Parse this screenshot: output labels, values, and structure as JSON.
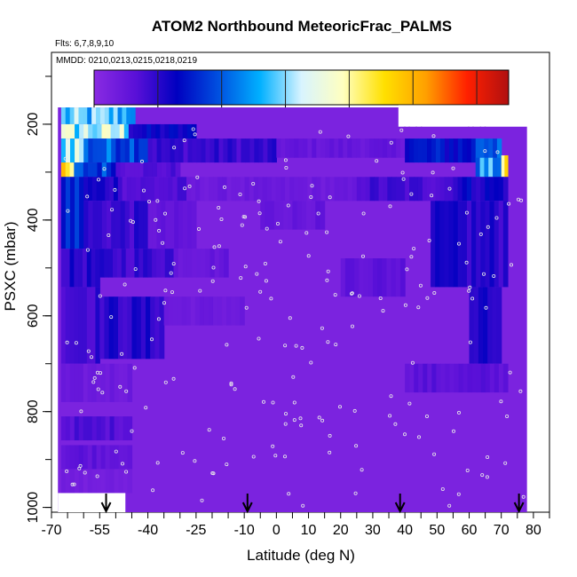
{
  "chart_data": {
    "type": "heatmap",
    "title": "ATOM2 Northbound MeteoricFrac_PALMS",
    "annotations": {
      "flights": "Flts: 6,7,8,9,10",
      "dates": "MMDD: 0210,0213,0215,0218,0219"
    },
    "xlabel": "Latitude (deg N)",
    "ylabel": "PSXC (mbar)",
    "xlim": [
      -70,
      85
    ],
    "ylim": [
      1010,
      50
    ],
    "x_ticks": [
      -70,
      -55,
      -40,
      -25,
      -10,
      0,
      10,
      20,
      30,
      40,
      50,
      60,
      70,
      80
    ],
    "y_ticks": [
      200,
      400,
      600,
      800,
      1000
    ],
    "colorbar": {
      "min": 0.0,
      "max": 0.65,
      "ticks": [
        0.0,
        0.1,
        0.2,
        0.3,
        0.4,
        0.5,
        0.6
      ],
      "colors": [
        "#8a2be2",
        "#5a10d8",
        "#0000c0",
        "#0050e0",
        "#00b0ff",
        "#d8f4ff",
        "#ffffc0",
        "#ffe000",
        "#ffa000",
        "#ff2000",
        "#b01010"
      ]
    },
    "background_value": 0.02,
    "cells": [
      {
        "x": [
          -67,
          -44
        ],
        "p": [
          165,
          200
        ],
        "v": 0.27
      },
      {
        "x": [
          -67,
          -46
        ],
        "p": [
          200,
          230
        ],
        "v": 0.32
      },
      {
        "x": [
          -46,
          -25
        ],
        "p": [
          200,
          230
        ],
        "v": 0.12
      },
      {
        "x": [
          -67,
          -60
        ],
        "p": [
          230,
          280
        ],
        "v": 0.33
      },
      {
        "x": [
          -60,
          -40
        ],
        "p": [
          230,
          280
        ],
        "v": 0.2
      },
      {
        "x": [
          -40,
          0
        ],
        "p": [
          230,
          280
        ],
        "v": 0.09
      },
      {
        "x": [
          0,
          40
        ],
        "p": [
          230,
          270
        ],
        "v": 0.05
      },
      {
        "x": [
          40,
          62
        ],
        "p": [
          230,
          280
        ],
        "v": 0.14
      },
      {
        "x": [
          62,
          70
        ],
        "p": [
          230,
          280
        ],
        "v": 0.22
      },
      {
        "x": [
          -67,
          -63
        ],
        "p": [
          280,
          310
        ],
        "v": 0.4
      },
      {
        "x": [
          -63,
          -50
        ],
        "p": [
          280,
          310
        ],
        "v": 0.18
      },
      {
        "x": [
          -50,
          -30
        ],
        "p": [
          280,
          310
        ],
        "v": 0.07
      },
      {
        "x": [
          62,
          70
        ],
        "p": [
          270,
          310
        ],
        "v": 0.24
      },
      {
        "x": [
          70,
          72
        ],
        "p": [
          265,
          310
        ],
        "v": 0.38
      },
      {
        "x": [
          -67,
          -60
        ],
        "p": [
          310,
          460
        ],
        "v": 0.16
      },
      {
        "x": [
          -60,
          -48
        ],
        "p": [
          310,
          360
        ],
        "v": 0.11
      },
      {
        "x": [
          -48,
          -28
        ],
        "p": [
          310,
          360
        ],
        "v": 0.07
      },
      {
        "x": [
          -28,
          25
        ],
        "p": [
          310,
          360
        ],
        "v": 0.04
      },
      {
        "x": [
          25,
          55
        ],
        "p": [
          310,
          360
        ],
        "v": 0.08
      },
      {
        "x": [
          55,
          72
        ],
        "p": [
          310,
          360
        ],
        "v": 0.12
      },
      {
        "x": [
          -60,
          -40
        ],
        "p": [
          360,
          460
        ],
        "v": 0.09
      },
      {
        "x": [
          -40,
          -25
        ],
        "p": [
          360,
          460
        ],
        "v": 0.05
      },
      {
        "x": [
          -5,
          15
        ],
        "p": [
          360,
          420
        ],
        "v": 0.05
      },
      {
        "x": [
          48,
          72
        ],
        "p": [
          360,
          540
        ],
        "v": 0.1
      },
      {
        "x": [
          -67,
          -55
        ],
        "p": [
          460,
          540
        ],
        "v": 0.1
      },
      {
        "x": [
          -55,
          -32
        ],
        "p": [
          460,
          520
        ],
        "v": 0.09
      },
      {
        "x": [
          -32,
          -15
        ],
        "p": [
          460,
          520
        ],
        "v": 0.05
      },
      {
        "x": [
          20,
          40
        ],
        "p": [
          480,
          560
        ],
        "v": 0.06
      },
      {
        "x": [
          -67,
          -55
        ],
        "p": [
          540,
          700
        ],
        "v": 0.09
      },
      {
        "x": [
          -55,
          -35
        ],
        "p": [
          560,
          690
        ],
        "v": 0.1
      },
      {
        "x": [
          -35,
          -10
        ],
        "p": [
          560,
          620
        ],
        "v": 0.04
      },
      {
        "x": [
          60,
          70
        ],
        "p": [
          540,
          700
        ],
        "v": 0.1
      },
      {
        "x": [
          -67,
          -45
        ],
        "p": [
          700,
          780
        ],
        "v": 0.04
      },
      {
        "x": [
          40,
          72
        ],
        "p": [
          700,
          760
        ],
        "v": 0.06
      },
      {
        "x": [
          -67,
          -45
        ],
        "p": [
          810,
          860
        ],
        "v": 0.07
      },
      {
        "x": [
          -67,
          -45
        ],
        "p": [
          870,
          920
        ],
        "v": 0.06
      },
      {
        "x": [
          -67,
          -45
        ],
        "p": [
          920,
          970
        ],
        "v": 0.03
      }
    ],
    "empty_regions": [
      {
        "x": [
          -68,
          -47
        ],
        "p": [
          970,
          1010
        ]
      },
      {
        "x": [
          38,
          78
        ],
        "p": [
          160,
          205
        ]
      }
    ],
    "arrows_lat": [
      -53,
      -9,
      38.5,
      75.5
    ]
  }
}
